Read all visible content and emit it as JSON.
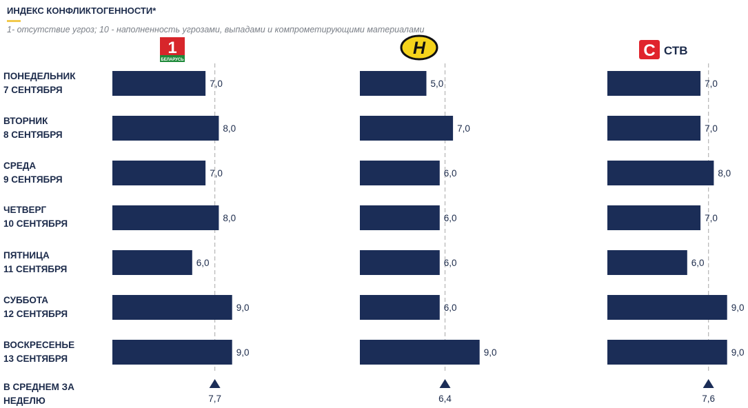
{
  "header": {
    "title": "ИНДЕКС КОНФЛИКТОГЕННОСТИ*",
    "subtitle": "1- отсутствие угроз; 10 - наполненность угрозами, выпадами и компрометирующими материалами"
  },
  "days": [
    {
      "line1": "ПОНЕДЕЛЬНИК",
      "line2": "7 СЕНТЯБРЯ"
    },
    {
      "line1": "ВТОРНИК",
      "line2": "8 СЕНТЯБРЯ"
    },
    {
      "line1": "СРЕДА",
      "line2": "9 СЕНТЯБРЯ"
    },
    {
      "line1": "ЧЕТВЕРГ",
      "line2": "10 СЕНТЯБРЯ"
    },
    {
      "line1": "ПЯТНИЦА",
      "line2": "11 СЕНТЯБРЯ"
    },
    {
      "line1": "СУББОТА",
      "line2": "12 СЕНТЯБРЯ"
    },
    {
      "line1": "ВОСКРЕСЕНЬЕ",
      "line2": "13 СЕНТЯБРЯ"
    }
  ],
  "average": {
    "line1": "В СРЕДНЕМ ЗА",
    "line2": "НЕДЕЛЮ"
  },
  "logos": {
    "belarus1": {
      "numeral": "1",
      "caption": "БЕЛАРУСЬ"
    },
    "ont": {
      "letter": "Н"
    },
    "ctb": {
      "letter": "С",
      "word": "СТВ"
    }
  },
  "colors": {
    "bar": "#1b2d57",
    "text": "#1b2a4a",
    "accent": "#f2c94c",
    "avgline": "#b5b5b5"
  },
  "chart_data": [
    {
      "type": "bar",
      "orientation": "horizontal",
      "channel_logo": "belarus1",
      "categories": [
        "ПОНЕДЕЛЬНИК 7 СЕНТЯБРЯ",
        "ВТОРНИК 8 СЕНТЯБРЯ",
        "СРЕДА 9 СЕНТЯБРЯ",
        "ЧЕТВЕРГ 10 СЕНТЯБРЯ",
        "ПЯТНИЦА 11 СЕНТЯБРЯ",
        "СУББОТА 12 СЕНТЯБРЯ",
        "ВОСКРЕСЕНЬЕ 13 СЕНТЯБРЯ"
      ],
      "values": [
        7.0,
        8.0,
        7.0,
        8.0,
        6.0,
        9.0,
        9.0
      ],
      "labels": [
        "7,0",
        "8,0",
        "7,0",
        "8,0",
        "6,0",
        "9,0",
        "9,0"
      ],
      "average": 7.7,
      "average_label": "7,7",
      "xlim": [
        0,
        10
      ]
    },
    {
      "type": "bar",
      "orientation": "horizontal",
      "channel_logo": "ont",
      "categories": [
        "ПОНЕДЕЛЬНИК 7 СЕНТЯБРЯ",
        "ВТОРНИК 8 СЕНТЯБРЯ",
        "СРЕДА 9 СЕНТЯБРЯ",
        "ЧЕТВЕРГ 10 СЕНТЯБРЯ",
        "ПЯТНИЦА 11 СЕНТЯБРЯ",
        "СУББОТА 12 СЕНТЯБРЯ",
        "ВОСКРЕСЕНЬЕ 13 СЕНТЯБРЯ"
      ],
      "values": [
        5.0,
        7.0,
        6.0,
        6.0,
        6.0,
        6.0,
        9.0
      ],
      "labels": [
        "5,0",
        "7,0",
        "6,0",
        "6,0",
        "6,0",
        "6,0",
        "9,0"
      ],
      "average": 6.4,
      "average_label": "6,4",
      "xlim": [
        0,
        10
      ]
    },
    {
      "type": "bar",
      "orientation": "horizontal",
      "channel_logo": "ctb",
      "categories": [
        "ПОНЕДЕЛЬНИК 7 СЕНТЯБРЯ",
        "ВТОРНИК 8 СЕНТЯБРЯ",
        "СРЕДА 9 СЕНТЯБРЯ",
        "ЧЕТВЕРГ 10 СЕНТЯБРЯ",
        "ПЯТНИЦА 11 СЕНТЯБРЯ",
        "СУББОТА 12 СЕНТЯБРЯ",
        "ВОСКРЕСЕНЬЕ 13 СЕНТЯБРЯ"
      ],
      "values": [
        7.0,
        7.0,
        8.0,
        7.0,
        6.0,
        9.0,
        9.0
      ],
      "labels": [
        "7,0",
        "7,0",
        "8,0",
        "7,0",
        "6,0",
        "9,0",
        "9,0"
      ],
      "average": 7.6,
      "average_label": "7,6",
      "xlim": [
        0,
        10
      ]
    }
  ]
}
